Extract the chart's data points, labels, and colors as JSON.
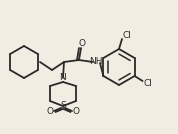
{
  "background_color": "#f2ede3",
  "line_color": "#2a2a2a",
  "line_width": 1.3,
  "text_color": "#2a2a2a",
  "font_size": 6.5,
  "figsize": [
    1.78,
    1.34
  ],
  "dpi": 100,
  "xlim": [
    0,
    178
  ],
  "ylim": [
    0,
    134
  ]
}
